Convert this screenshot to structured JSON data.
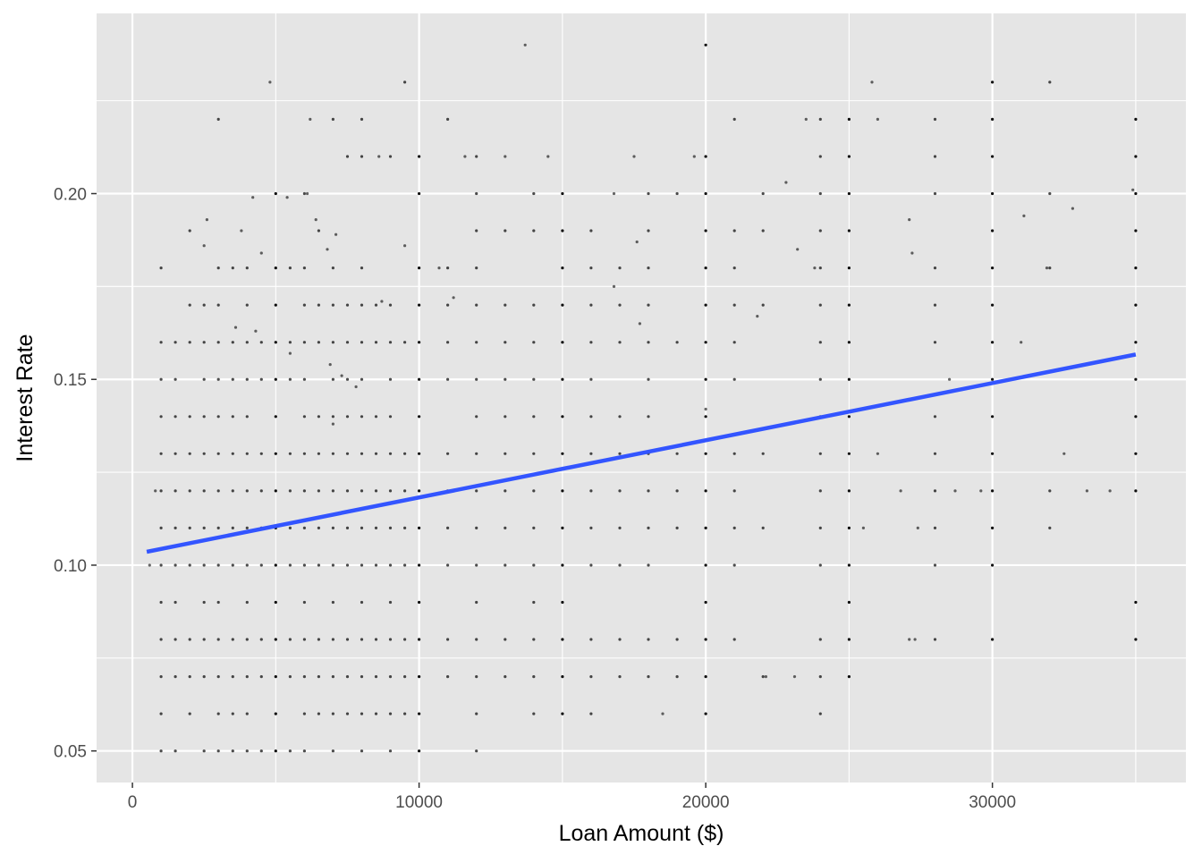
{
  "chart_data": {
    "type": "scatter",
    "title": "",
    "xlabel": "Loan Amount ($)",
    "ylabel": "Interest Rate",
    "xlim": [
      -1250,
      36750
    ],
    "ylim": [
      0.0415,
      0.2485
    ],
    "x_ticks": [
      0,
      10000,
      20000,
      30000
    ],
    "x_tick_labels": [
      "0",
      "10000",
      "20000",
      "30000"
    ],
    "y_ticks": [
      0.05,
      0.1,
      0.15,
      0.2
    ],
    "y_tick_labels": [
      "0.05",
      "0.10",
      "0.15",
      "0.20"
    ],
    "grid": true,
    "legend": "none",
    "colors": {
      "panel_background": "#e5e5e5",
      "grid": "#ffffff",
      "points": "#000000",
      "trend_line": "#3355ff"
    },
    "trend_line": {
      "method": "linear",
      "x": [
        500,
        35000
      ],
      "y": [
        0.1036,
        0.1567
      ]
    },
    "point_columns": [
      {
        "x": 1000,
        "y": [
          0.05,
          0.06,
          0.07,
          0.08,
          0.09,
          0.1,
          0.11,
          0.12,
          0.13,
          0.14,
          0.15,
          0.16,
          0.18
        ]
      },
      {
        "x": 1500,
        "y": [
          0.05,
          0.07,
          0.08,
          0.09,
          0.1,
          0.11,
          0.12,
          0.13,
          0.14,
          0.15,
          0.16
        ]
      },
      {
        "x": 2000,
        "y": [
          0.06,
          0.07,
          0.08,
          0.1,
          0.11,
          0.12,
          0.13,
          0.14,
          0.16,
          0.17,
          0.19
        ]
      },
      {
        "x": 2500,
        "y": [
          0.05,
          0.07,
          0.08,
          0.09,
          0.1,
          0.11,
          0.12,
          0.13,
          0.14,
          0.15,
          0.16,
          0.17
        ]
      },
      {
        "x": 3000,
        "y": [
          0.05,
          0.06,
          0.07,
          0.08,
          0.09,
          0.1,
          0.11,
          0.12,
          0.13,
          0.14,
          0.15,
          0.16,
          0.17,
          0.18,
          0.22
        ]
      },
      {
        "x": 3500,
        "y": [
          0.05,
          0.06,
          0.07,
          0.08,
          0.1,
          0.11,
          0.12,
          0.13,
          0.14,
          0.15,
          0.16,
          0.18
        ]
      },
      {
        "x": 4000,
        "y": [
          0.05,
          0.06,
          0.07,
          0.08,
          0.09,
          0.1,
          0.11,
          0.12,
          0.13,
          0.14,
          0.15,
          0.16,
          0.17,
          0.18
        ]
      },
      {
        "x": 4500,
        "y": [
          0.05,
          0.07,
          0.08,
          0.1,
          0.11,
          0.12,
          0.13,
          0.15,
          0.16
        ]
      },
      {
        "x": 5000,
        "y": [
          0.05,
          0.06,
          0.07,
          0.08,
          0.09,
          0.1,
          0.11,
          0.12,
          0.13,
          0.14,
          0.15,
          0.16,
          0.17,
          0.18,
          0.2
        ]
      },
      {
        "x": 5500,
        "y": [
          0.05,
          0.07,
          0.08,
          0.1,
          0.11,
          0.12,
          0.13,
          0.15,
          0.16,
          0.18
        ]
      },
      {
        "x": 6000,
        "y": [
          0.05,
          0.06,
          0.07,
          0.08,
          0.09,
          0.1,
          0.11,
          0.12,
          0.13,
          0.14,
          0.15,
          0.16,
          0.17,
          0.18,
          0.2
        ]
      },
      {
        "x": 6500,
        "y": [
          0.06,
          0.07,
          0.08,
          0.1,
          0.11,
          0.12,
          0.13,
          0.14,
          0.16,
          0.17,
          0.19
        ]
      },
      {
        "x": 7000,
        "y": [
          0.05,
          0.06,
          0.07,
          0.08,
          0.09,
          0.1,
          0.11,
          0.12,
          0.13,
          0.14,
          0.15,
          0.16,
          0.17,
          0.18,
          0.22
        ]
      },
      {
        "x": 7500,
        "y": [
          0.06,
          0.07,
          0.08,
          0.1,
          0.11,
          0.12,
          0.13,
          0.14,
          0.15,
          0.16,
          0.17,
          0.21
        ]
      },
      {
        "x": 8000,
        "y": [
          0.05,
          0.06,
          0.07,
          0.08,
          0.09,
          0.1,
          0.11,
          0.12,
          0.13,
          0.14,
          0.15,
          0.16,
          0.17,
          0.18,
          0.21,
          0.22
        ]
      },
      {
        "x": 8500,
        "y": [
          0.06,
          0.07,
          0.08,
          0.1,
          0.11,
          0.12,
          0.13,
          0.14,
          0.16,
          0.17
        ]
      },
      {
        "x": 9000,
        "y": [
          0.05,
          0.06,
          0.07,
          0.08,
          0.09,
          0.1,
          0.11,
          0.12,
          0.13,
          0.14,
          0.15,
          0.16,
          0.17,
          0.21
        ]
      },
      {
        "x": 9500,
        "y": [
          0.06,
          0.07,
          0.08,
          0.1,
          0.11,
          0.12,
          0.13,
          0.16,
          0.23
        ]
      },
      {
        "x": 10000,
        "y": [
          0.05,
          0.06,
          0.07,
          0.08,
          0.09,
          0.1,
          0.11,
          0.12,
          0.13,
          0.14,
          0.15,
          0.16,
          0.17,
          0.18,
          0.2,
          0.21
        ]
      },
      {
        "x": 11000,
        "y": [
          0.07,
          0.08,
          0.1,
          0.11,
          0.12,
          0.13,
          0.15,
          0.16,
          0.17,
          0.18,
          0.22
        ]
      },
      {
        "x": 12000,
        "y": [
          0.05,
          0.06,
          0.07,
          0.08,
          0.09,
          0.1,
          0.11,
          0.12,
          0.13,
          0.14,
          0.15,
          0.16,
          0.17,
          0.18,
          0.19,
          0.2,
          0.21
        ]
      },
      {
        "x": 13000,
        "y": [
          0.07,
          0.08,
          0.1,
          0.11,
          0.12,
          0.13,
          0.14,
          0.15,
          0.16,
          0.17,
          0.19
        ]
      },
      {
        "x": 14000,
        "y": [
          0.06,
          0.07,
          0.08,
          0.09,
          0.1,
          0.11,
          0.12,
          0.13,
          0.14,
          0.15,
          0.16,
          0.17,
          0.19,
          0.2
        ]
      },
      {
        "x": 15000,
        "y": [
          0.06,
          0.07,
          0.08,
          0.09,
          0.1,
          0.11,
          0.12,
          0.13,
          0.14,
          0.15,
          0.16,
          0.17,
          0.18,
          0.19,
          0.2
        ]
      },
      {
        "x": 16000,
        "y": [
          0.06,
          0.07,
          0.08,
          0.1,
          0.11,
          0.12,
          0.13,
          0.14,
          0.15,
          0.16,
          0.17,
          0.18,
          0.19
        ]
      },
      {
        "x": 17000,
        "y": [
          0.07,
          0.08,
          0.1,
          0.11,
          0.12,
          0.13,
          0.14,
          0.16,
          0.17,
          0.18
        ]
      },
      {
        "x": 18000,
        "y": [
          0.07,
          0.08,
          0.1,
          0.11,
          0.12,
          0.13,
          0.14,
          0.15,
          0.16,
          0.17,
          0.18,
          0.19,
          0.2
        ]
      },
      {
        "x": 19000,
        "y": [
          0.07,
          0.08,
          0.11,
          0.12,
          0.13,
          0.16,
          0.2
        ]
      },
      {
        "x": 20000,
        "y": [
          0.06,
          0.07,
          0.08,
          0.09,
          0.1,
          0.11,
          0.12,
          0.13,
          0.14,
          0.15,
          0.16,
          0.17,
          0.18,
          0.19,
          0.2,
          0.21,
          0.24
        ]
      },
      {
        "x": 21000,
        "y": [
          0.08,
          0.1,
          0.11,
          0.12,
          0.13,
          0.15,
          0.16,
          0.17,
          0.18,
          0.19,
          0.22
        ]
      },
      {
        "x": 22000,
        "y": [
          0.07,
          0.11,
          0.13,
          0.17,
          0.19,
          0.2
        ]
      },
      {
        "x": 24000,
        "y": [
          0.06,
          0.07,
          0.08,
          0.1,
          0.11,
          0.12,
          0.13,
          0.14,
          0.15,
          0.16,
          0.17,
          0.18,
          0.19,
          0.2,
          0.21,
          0.22
        ]
      },
      {
        "x": 25000,
        "y": [
          0.07,
          0.08,
          0.09,
          0.1,
          0.11,
          0.12,
          0.13,
          0.14,
          0.15,
          0.16,
          0.17,
          0.18,
          0.19,
          0.2,
          0.21,
          0.22
        ]
      },
      {
        "x": 28000,
        "y": [
          0.08,
          0.1,
          0.11,
          0.12,
          0.13,
          0.14,
          0.16,
          0.17,
          0.18,
          0.2,
          0.21,
          0.22
        ]
      },
      {
        "x": 30000,
        "y": [
          0.08,
          0.1,
          0.11,
          0.12,
          0.13,
          0.14,
          0.15,
          0.16,
          0.17,
          0.18,
          0.19,
          0.2,
          0.21,
          0.22,
          0.23
        ]
      },
      {
        "x": 32000,
        "y": [
          0.11,
          0.12,
          0.18,
          0.2,
          0.23
        ]
      },
      {
        "x": 35000,
        "y": [
          0.08,
          0.09,
          0.12,
          0.13,
          0.14,
          0.15,
          0.16,
          0.17,
          0.18,
          0.19,
          0.2,
          0.21,
          0.22
        ]
      }
    ],
    "points_scattered": [
      {
        "x": 13700,
        "y": 0.24
      },
      {
        "x": 4800,
        "y": 0.23
      },
      {
        "x": 25800,
        "y": 0.23
      },
      {
        "x": 6200,
        "y": 0.22
      },
      {
        "x": 23500,
        "y": 0.22
      },
      {
        "x": 26000,
        "y": 0.22
      },
      {
        "x": 8600,
        "y": 0.21
      },
      {
        "x": 11600,
        "y": 0.21
      },
      {
        "x": 13000,
        "y": 0.21
      },
      {
        "x": 14500,
        "y": 0.21
      },
      {
        "x": 17500,
        "y": 0.21
      },
      {
        "x": 19600,
        "y": 0.21
      },
      {
        "x": 4200,
        "y": 0.199
      },
      {
        "x": 5400,
        "y": 0.199
      },
      {
        "x": 6100,
        "y": 0.2
      },
      {
        "x": 16800,
        "y": 0.2
      },
      {
        "x": 22800,
        "y": 0.203
      },
      {
        "x": 34900,
        "y": 0.201
      },
      {
        "x": 2600,
        "y": 0.193
      },
      {
        "x": 3800,
        "y": 0.19
      },
      {
        "x": 6400,
        "y": 0.193
      },
      {
        "x": 7100,
        "y": 0.189
      },
      {
        "x": 17600,
        "y": 0.187
      },
      {
        "x": 27100,
        "y": 0.193
      },
      {
        "x": 31100,
        "y": 0.194
      },
      {
        "x": 32800,
        "y": 0.196
      },
      {
        "x": 2500,
        "y": 0.186
      },
      {
        "x": 4500,
        "y": 0.184
      },
      {
        "x": 6800,
        "y": 0.185
      },
      {
        "x": 9500,
        "y": 0.186
      },
      {
        "x": 10700,
        "y": 0.18
      },
      {
        "x": 23200,
        "y": 0.185
      },
      {
        "x": 27200,
        "y": 0.184
      },
      {
        "x": 31900,
        "y": 0.18
      },
      {
        "x": 3600,
        "y": 0.164
      },
      {
        "x": 4300,
        "y": 0.163
      },
      {
        "x": 5500,
        "y": 0.157
      },
      {
        "x": 7800,
        "y": 0.148
      },
      {
        "x": 7300,
        "y": 0.151
      },
      {
        "x": 6900,
        "y": 0.154
      },
      {
        "x": 11200,
        "y": 0.172
      },
      {
        "x": 8700,
        "y": 0.171
      },
      {
        "x": 16800,
        "y": 0.175
      },
      {
        "x": 17700,
        "y": 0.165
      },
      {
        "x": 21800,
        "y": 0.167
      },
      {
        "x": 7000,
        "y": 0.138
      },
      {
        "x": 20000,
        "y": 0.142
      },
      {
        "x": 28500,
        "y": 0.15
      },
      {
        "x": 600,
        "y": 0.1
      },
      {
        "x": 800,
        "y": 0.12
      },
      {
        "x": 27400,
        "y": 0.11
      },
      {
        "x": 29600,
        "y": 0.12
      },
      {
        "x": 33300,
        "y": 0.12
      },
      {
        "x": 34100,
        "y": 0.12
      },
      {
        "x": 32500,
        "y": 0.13
      },
      {
        "x": 31000,
        "y": 0.16
      },
      {
        "x": 26000,
        "y": 0.13
      },
      {
        "x": 23100,
        "y": 0.07
      },
      {
        "x": 22100,
        "y": 0.07
      },
      {
        "x": 18500,
        "y": 0.06
      },
      {
        "x": 27300,
        "y": 0.08
      },
      {
        "x": 27100,
        "y": 0.08
      },
      {
        "x": 25500,
        "y": 0.11
      },
      {
        "x": 26800,
        "y": 0.12
      },
      {
        "x": 28700,
        "y": 0.12
      },
      {
        "x": 23800,
        "y": 0.18
      }
    ]
  }
}
